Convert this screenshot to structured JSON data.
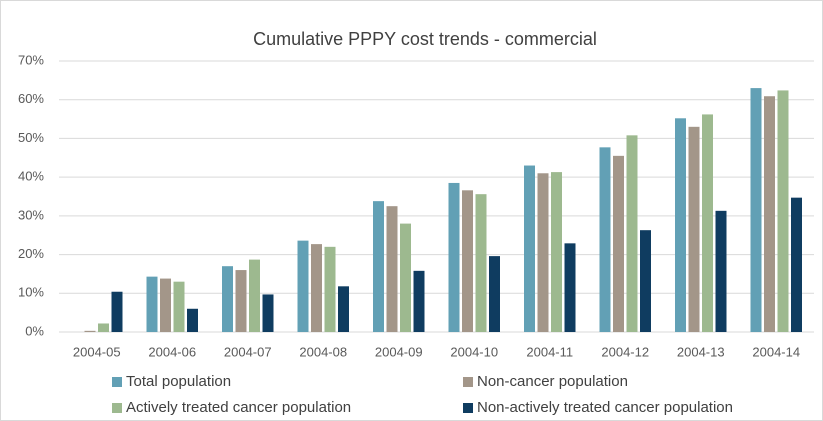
{
  "chart_data": {
    "type": "bar",
    "title": "Cumulative PPPY cost trends - commercial",
    "categories": [
      "2004-05",
      "2004-06",
      "2004-07",
      "2004-08",
      "2004-09",
      "2004-10",
      "2004-11",
      "2004-12",
      "2004-13",
      "2004-14"
    ],
    "series": [
      {
        "name": "Total population",
        "color": "#62a0b5",
        "values": [
          0,
          14.3,
          17,
          23.6,
          33.8,
          38.5,
          43,
          47.7,
          55.2,
          63
        ]
      },
      {
        "name": "Non-cancer population",
        "color": "#a39689",
        "values": [
          0.3,
          13.8,
          16,
          22.7,
          32.5,
          36.6,
          41,
          45.5,
          53,
          60.9
        ]
      },
      {
        "name": "Actively treated cancer population",
        "color": "#9db98f",
        "values": [
          2.2,
          13,
          18.7,
          22,
          28,
          35.6,
          41.3,
          50.8,
          56.2,
          62.4
        ]
      },
      {
        "name": "Non-actively treated cancer population",
        "color": "#0f3c60",
        "values": [
          10.4,
          6,
          9.7,
          11.8,
          15.8,
          19.6,
          22.9,
          26.3,
          31.3,
          34.7
        ]
      }
    ],
    "ylim": [
      0,
      70
    ],
    "yticks": [
      {
        "value": 0,
        "label": "0%"
      },
      {
        "value": 10,
        "label": "10%"
      },
      {
        "value": 20,
        "label": "20%"
      },
      {
        "value": 30,
        "label": "30%"
      },
      {
        "value": 40,
        "label": "40%"
      },
      {
        "value": 50,
        "label": "50%"
      },
      {
        "value": 60,
        "label": "60%"
      },
      {
        "value": 70,
        "label": "70%"
      }
    ],
    "grid": true
  }
}
